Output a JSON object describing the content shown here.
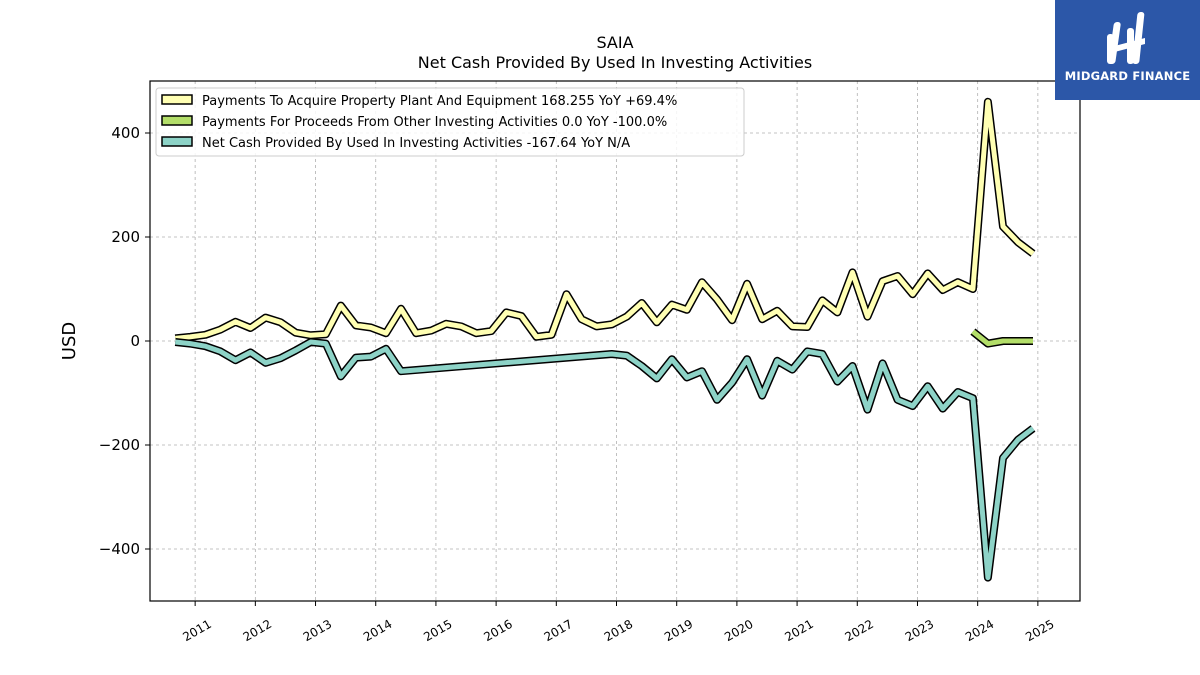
{
  "brand": {
    "name": "MIDGARD FINANCE",
    "color": "#2c57a8"
  },
  "chart_data": {
    "type": "line",
    "title": "SAIA",
    "subtitle": "Net Cash Provided By Used In Investing Activities",
    "ylabel": "USD",
    "xlabel": "",
    "ylim": [
      -500,
      500
    ],
    "xlim": [
      2010.25,
      2025.7
    ],
    "yticks": [
      400,
      200,
      0,
      -200,
      -400
    ],
    "ytick_labels": [
      "400",
      "200",
      "0",
      "−200",
      "−400"
    ],
    "xticks": [
      2011,
      2012,
      2013,
      2014,
      2015,
      2016,
      2017,
      2018,
      2019,
      2020,
      2021,
      2022,
      2023,
      2024,
      2025
    ],
    "xtick_labels": [
      "2011",
      "2012",
      "2013",
      "2014",
      "2015",
      "2016",
      "2017",
      "2018",
      "2019",
      "2020",
      "2021",
      "2022",
      "2023",
      "2024",
      "2025"
    ],
    "grid": true,
    "legend_position": "top-left",
    "series": [
      {
        "name": "Payments To Acquire Property Plant And Equipment",
        "legend_label": "Payments To Acquire Property Plant And Equipment  168.255 YoY +69.4%",
        "color": "#ffffb3",
        "x": [
          2010.67,
          2010.92,
          2011.17,
          2011.42,
          2011.67,
          2011.92,
          2012.17,
          2012.42,
          2012.67,
          2012.92,
          2013.17,
          2013.42,
          2013.67,
          2013.92,
          2014.17,
          2014.42,
          2014.67,
          2014.92,
          2015.17,
          2015.42,
          2015.67,
          2015.92,
          2016.17,
          2016.42,
          2016.67,
          2016.92,
          2017.17,
          2017.42,
          2017.67,
          2017.92,
          2018.17,
          2018.42,
          2018.67,
          2018.92,
          2019.17,
          2019.42,
          2019.67,
          2019.92,
          2020.17,
          2020.42,
          2020.67,
          2020.92,
          2021.17,
          2021.42,
          2021.67,
          2021.92,
          2022.17,
          2022.42,
          2022.67,
          2022.92,
          2023.17,
          2023.42,
          2023.67,
          2023.92,
          2024.17,
          2024.42,
          2024.67,
          2024.92
        ],
        "values": [
          5,
          8,
          12,
          22,
          37,
          25,
          45,
          36,
          16,
          11,
          13,
          68,
          30,
          26,
          15,
          62,
          15,
          20,
          33,
          28,
          15,
          19,
          55,
          48,
          8,
          12,
          90,
          42,
          28,
          32,
          47,
          73,
          36,
          70,
          60,
          113,
          80,
          40,
          110,
          42,
          58,
          28,
          27,
          78,
          55,
          132,
          47,
          115,
          125,
          90,
          130,
          98,
          113,
          100,
          460,
          220,
          190,
          168
        ]
      },
      {
        "name": "Payments For Proceeds From Other Investing Activities",
        "legend_label": "Payments For Proceeds From Other Investing Activities  0.0 YoY -100.0%",
        "color": "#b3de69",
        "x": [
          2023.92,
          2024.17,
          2024.42,
          2024.67,
          2024.92
        ],
        "values": [
          18,
          -5,
          0,
          0,
          0
        ]
      },
      {
        "name": "Net Cash Provided By Used In Investing Activities",
        "legend_label": "Net Cash Provided By Used In Investing Activities  -167.64 YoY N/A",
        "color": "#8dd3c7",
        "x": [
          2010.67,
          2010.92,
          2011.17,
          2011.42,
          2011.67,
          2011.92,
          2012.17,
          2012.42,
          2012.67,
          2012.92,
          2013.17,
          2013.42,
          2013.67,
          2013.92,
          2014.17,
          2014.42,
          2017.92,
          2018.17,
          2018.42,
          2018.67,
          2018.92,
          2019.17,
          2019.42,
          2019.67,
          2019.92,
          2020.17,
          2020.42,
          2020.67,
          2020.92,
          2021.17,
          2021.42,
          2021.67,
          2021.92,
          2022.17,
          2022.42,
          2022.67,
          2022.92,
          2023.17,
          2023.42,
          2023.67,
          2023.92,
          2024.17,
          2024.42,
          2024.67,
          2024.92
        ],
        "values": [
          -2,
          -5,
          -10,
          -20,
          -37,
          -22,
          -42,
          -33,
          -18,
          -2,
          -5,
          -68,
          -32,
          -30,
          -15,
          -58,
          -25,
          -28,
          -48,
          -72,
          -35,
          -70,
          -58,
          -113,
          -80,
          -35,
          -105,
          -38,
          -55,
          -20,
          -25,
          -78,
          -48,
          -132,
          -43,
          -113,
          -125,
          -87,
          -130,
          -98,
          -110,
          -455,
          -225,
          -190,
          -168
        ]
      }
    ]
  }
}
